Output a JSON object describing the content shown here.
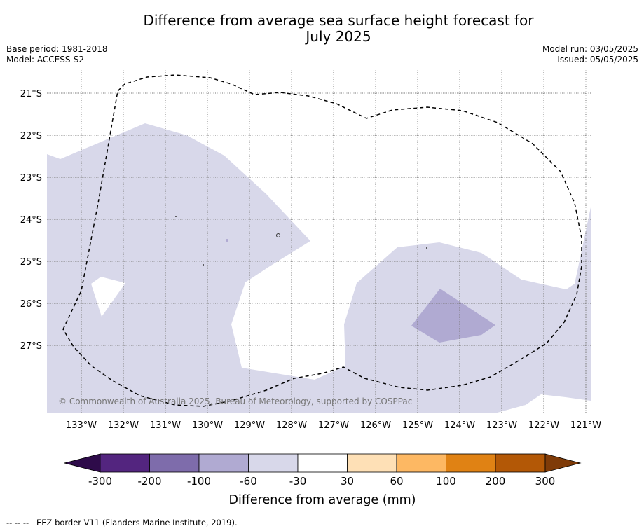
{
  "header": {
    "title_line1": "Difference from average sea surface height forecast for",
    "title_line2": "July 2025",
    "base_period": "Base period: 1981-2018",
    "model": "Model: ACCESS-S2",
    "model_run": "Model run: 03/05/2025",
    "issued": "Issued: 05/05/2025"
  },
  "map": {
    "lat_labels": [
      "21°S",
      "22°S",
      "23°S",
      "24°S",
      "25°S",
      "26°S",
      "27°S"
    ],
    "lon_labels": [
      "133°W",
      "132°W",
      "131°W",
      "130°W",
      "129°W",
      "128°W",
      "127°W",
      "126°W",
      "125°W",
      "124°W",
      "123°W",
      "122°W",
      "121°W"
    ],
    "copyright": "© Commonwealth of Australia 2025, Bureau of Meteorology, supported by COSPPac",
    "colors": {
      "fill_-60_-30": "#d8d8ea",
      "fill_-100_-60": "#b0aad2",
      "eez_line": "#000000"
    }
  },
  "colorbar": {
    "title": "Difference from average (mm)",
    "tick_labels": [
      "-300",
      "-200",
      "-100",
      "-60",
      "-30",
      "30",
      "60",
      "100",
      "200",
      "300"
    ],
    "colors": [
      "#2e0b4a",
      "#53257f",
      "#7e6cab",
      "#b0aad2",
      "#d8d8ea",
      "#ffffff",
      "#fee0b6",
      "#fdb863",
      "#e08214",
      "#b35806",
      "#7f3b08"
    ]
  },
  "footer": {
    "legend_symbol": "--  --  --",
    "legend_text": "EEZ border V11 (Flanders Marine Institute, 2019)."
  }
}
